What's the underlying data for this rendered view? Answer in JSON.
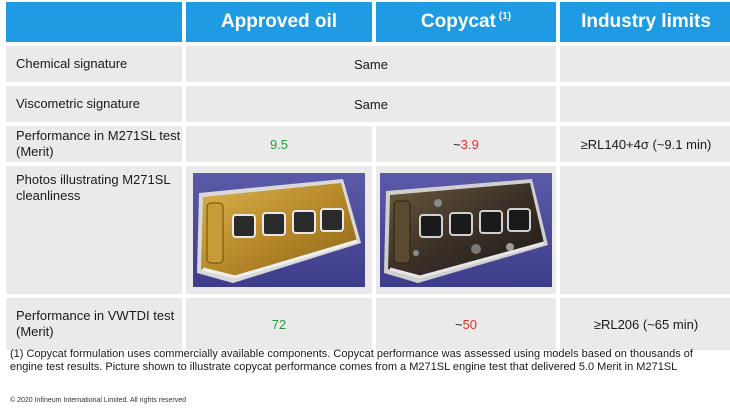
{
  "header": {
    "col_approved": "Approved oil",
    "col_copycat": "Copycat",
    "col_copycat_note": "(1)",
    "col_limits": "Industry limits"
  },
  "rows": {
    "chemical": {
      "label": "Chemical signature",
      "value": "Same"
    },
    "viscometric": {
      "label": "Viscometric signature",
      "value": "Same"
    },
    "m271_perf": {
      "label": "Performance in M271SL test (Merit)",
      "approved": "9.5",
      "copycat_prefix": "~",
      "copycat": "3.9",
      "limit": "≥RL140+4σ (~9.1 min)"
    },
    "photos": {
      "label": "Photos illustrating M271SL cleanliness",
      "approved_photo": "clean-engine-cover-photo",
      "copycat_photo": "sludged-engine-cover-photo"
    },
    "vwtdi_perf": {
      "label": "Performance in VWTDI test (Merit)",
      "approved": "72",
      "copycat_prefix": "~",
      "copycat": "50",
      "limit": "≥RL206 (~65 min)"
    }
  },
  "footnote": "(1) Copycat formulation uses commercially available components. Copycat performance was assessed using models based on thousands of engine test results. Picture shown to illustrate copycat performance comes from a M271SL engine test that delivered 5.0 Merit in M271SL",
  "copyright": "© 2020 Infineum International Limited. All rights reserved",
  "colors": {
    "header_blue": "#1e9be2",
    "row_grey": "#eaeaea",
    "good_green": "#2a9a3a",
    "bad_red": "#e4302a"
  }
}
